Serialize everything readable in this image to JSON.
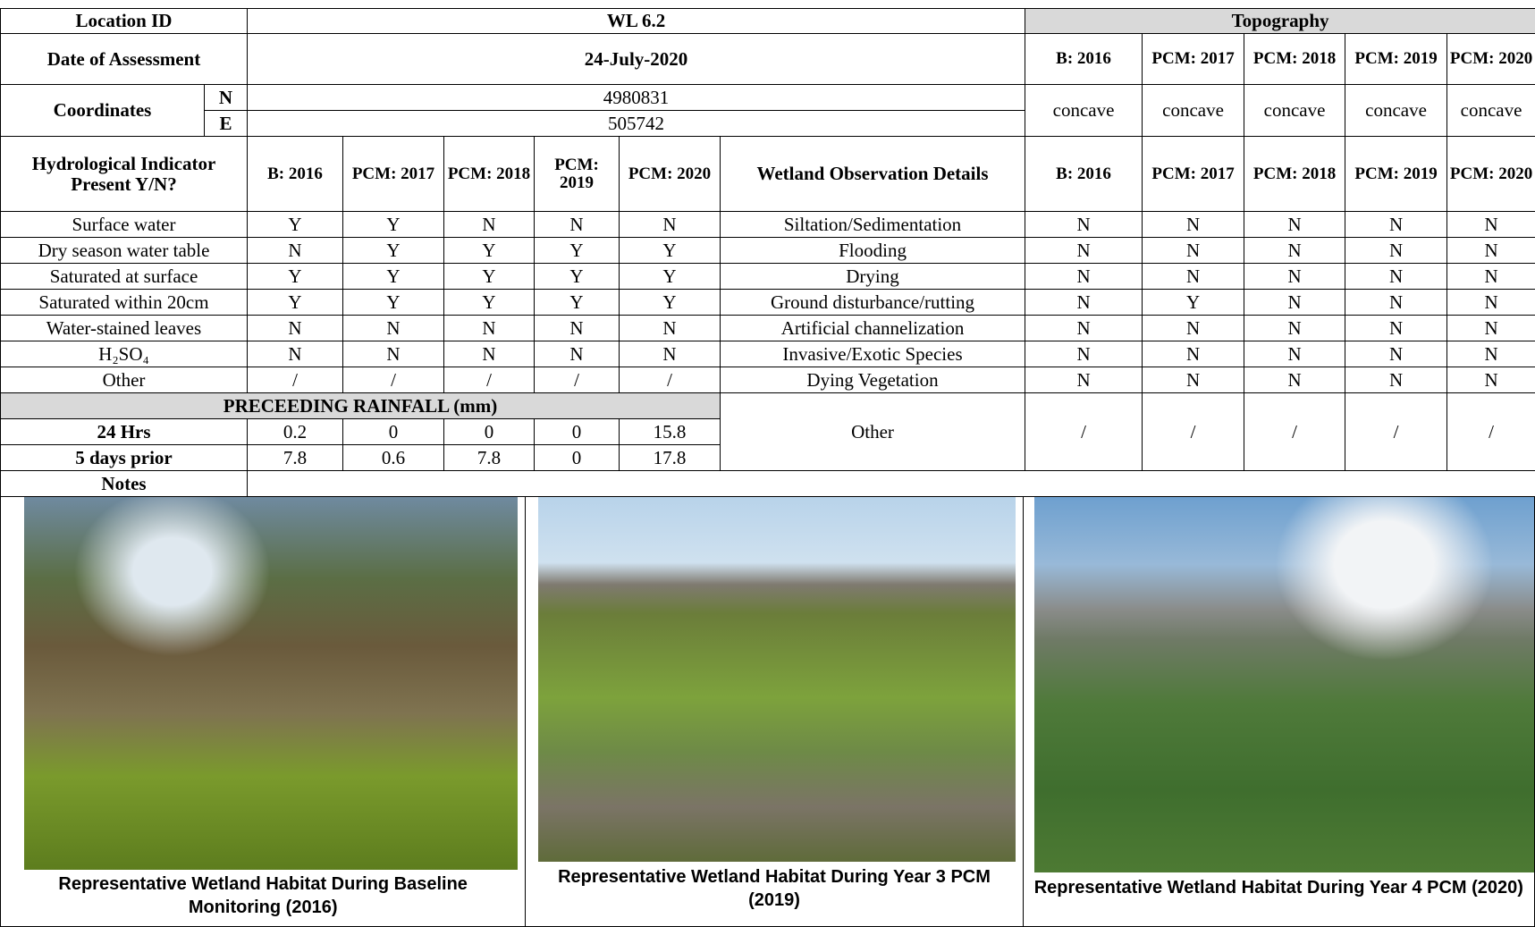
{
  "location": {
    "label": "Location ID",
    "value": "WL 6.2"
  },
  "date": {
    "label": "Date of Assessment",
    "value": "24-July-2020"
  },
  "coordinates": {
    "label": "Coordinates",
    "n_label": "N",
    "n_value": "4980831",
    "e_label": "E",
    "e_value": "505742"
  },
  "topography": {
    "title": "Topography",
    "years": [
      "B: 2016",
      "PCM: 2017",
      "PCM: 2018",
      "PCM: 2019",
      "PCM: 2020"
    ],
    "values": [
      "concave",
      "concave",
      "concave",
      "concave",
      "concave"
    ]
  },
  "hydrology": {
    "title": "Hydrological Indicator Present Y/N?",
    "years": [
      "B: 2016",
      "PCM: 2017",
      "PCM: 2018",
      "PCM: 2019",
      "PCM: 2020"
    ],
    "rows": [
      {
        "label": "Surface water",
        "values": [
          "Y",
          "Y",
          "N",
          "N",
          "N"
        ]
      },
      {
        "label": "Dry season water table",
        "values": [
          "N",
          "Y",
          "Y",
          "Y",
          "Y"
        ]
      },
      {
        "label": "Saturated at surface",
        "values": [
          "Y",
          "Y",
          "Y",
          "Y",
          "Y"
        ]
      },
      {
        "label": "Saturated within 20cm",
        "values": [
          "Y",
          "Y",
          "Y",
          "Y",
          "Y"
        ]
      },
      {
        "label": "Water-stained leaves",
        "values": [
          "N",
          "N",
          "N",
          "N",
          "N"
        ]
      },
      {
        "label": "H₂SO₄",
        "values": [
          "N",
          "N",
          "N",
          "N",
          "N"
        ]
      },
      {
        "label": "Other",
        "values": [
          "/",
          "/",
          "/",
          "/",
          "/"
        ]
      }
    ]
  },
  "observations": {
    "title": "Wetland Observation Details",
    "years": [
      "B: 2016",
      "PCM: 2017",
      "PCM: 2018",
      "PCM: 2019",
      "PCM: 2020"
    ],
    "rows": [
      {
        "label": "Siltation/Sedimentation",
        "values": [
          "N",
          "N",
          "N",
          "N",
          "N"
        ]
      },
      {
        "label": "Flooding",
        "values": [
          "N",
          "N",
          "N",
          "N",
          "N"
        ]
      },
      {
        "label": "Drying",
        "values": [
          "N",
          "N",
          "N",
          "N",
          "N"
        ]
      },
      {
        "label": "Ground disturbance/rutting",
        "values": [
          "N",
          "Y",
          "N",
          "N",
          "N"
        ]
      },
      {
        "label": "Artificial channelization",
        "values": [
          "N",
          "N",
          "N",
          "N",
          "N"
        ]
      },
      {
        "label": "Invasive/Exotic Species",
        "values": [
          "N",
          "N",
          "N",
          "N",
          "N"
        ]
      },
      {
        "label": "Dying Vegetation",
        "values": [
          "N",
          "N",
          "N",
          "N",
          "N"
        ]
      }
    ],
    "other": {
      "label": "Other",
      "values": [
        "/",
        "/",
        "/",
        "/",
        "/"
      ]
    }
  },
  "rainfall": {
    "title": "PRECEEDING RAINFALL (mm)",
    "rows": [
      {
        "label": "24 Hrs",
        "values": [
          0.2,
          0,
          0,
          0,
          15.8
        ]
      },
      {
        "label": "5 days prior",
        "values": [
          7.8,
          0.6,
          7.8,
          0,
          17.8
        ]
      }
    ]
  },
  "notes": {
    "label": "Notes"
  },
  "photos": [
    {
      "caption": "Representative Wetland Habitat During Baseline Monitoring (2016)"
    },
    {
      "caption": "Representative Wetland Habitat During Year 3 PCM (2019)"
    },
    {
      "caption": "Representative Wetland Habitat During Year 4 PCM (2020)"
    }
  ]
}
